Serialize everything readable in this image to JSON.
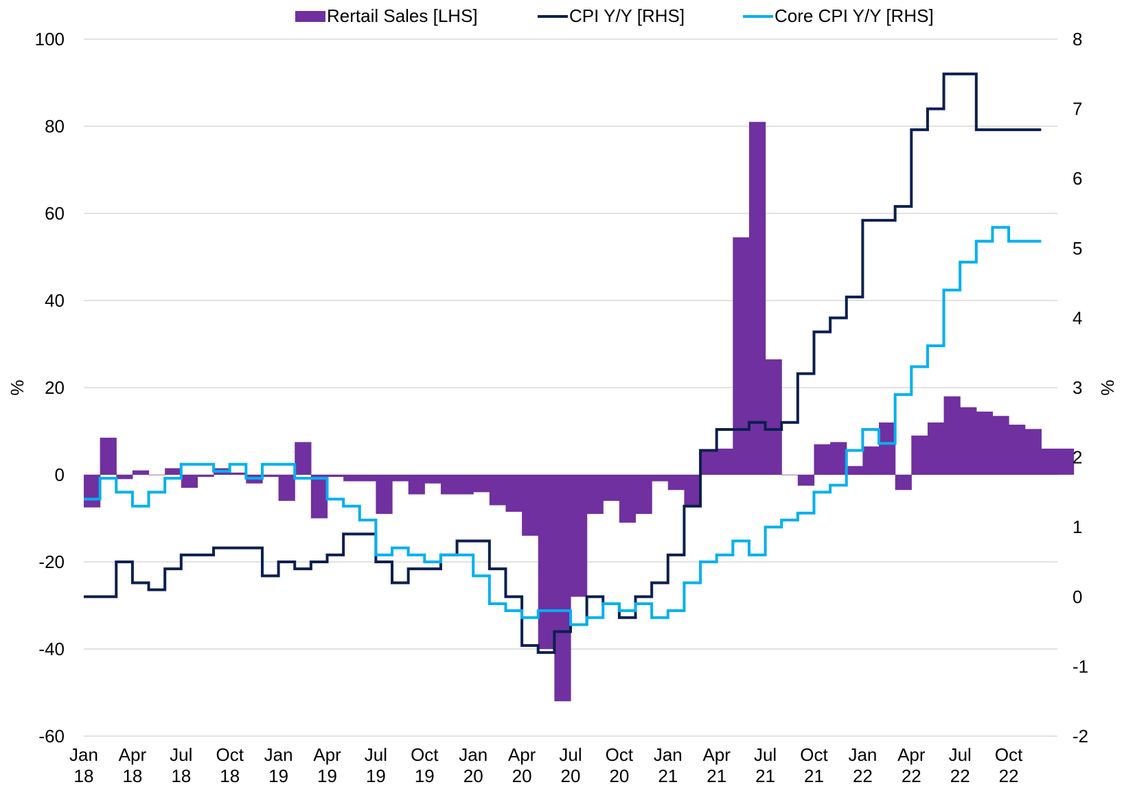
{
  "chart_data": {
    "type": "bar",
    "legend_position": "top",
    "grid": true,
    "series": [
      {
        "name": "Rertail Sales [LHS]",
        "type": "bar",
        "axis": "left",
        "color": "#7030A0",
        "values": [
          -7.5,
          8.5,
          -1,
          1,
          0,
          1.5,
          -3,
          -0.5,
          1.5,
          0.5,
          -2,
          -0.5,
          -6,
          7.5,
          -10,
          -0.5,
          -1.5,
          -1.5,
          -9,
          -1.5,
          -4.5,
          -2,
          -4.5,
          -4.5,
          -4,
          -7,
          -8.5,
          -14,
          -40,
          -52,
          -28,
          -9,
          -6,
          -11,
          -9,
          -1.5,
          -3.5,
          -7,
          5.5,
          6,
          54.5,
          81,
          26.5,
          0,
          -2.5,
          7,
          7.5,
          2,
          6.5,
          12,
          -3.5,
          9,
          12,
          18,
          15.5,
          14.5,
          13.5,
          11.5,
          10.5,
          6,
          6
        ]
      },
      {
        "name": "CPI Y/Y [RHS]",
        "type": "line",
        "axis": "right",
        "color": "#0B1F4F",
        "values": [
          0,
          0,
          0.5,
          0.2,
          0.1,
          0.4,
          0.6,
          0.6,
          0.7,
          0.7,
          0.7,
          0.3,
          0.5,
          0.4,
          0.5,
          0.6,
          0.9,
          0.9,
          0.5,
          0.2,
          0.4,
          0.4,
          0.6,
          0.8,
          0.8,
          0.4,
          0,
          -0.7,
          -0.8,
          -0.5,
          -0.4,
          0,
          -0.1,
          -0.3,
          0,
          0.2,
          0.6,
          1.3,
          2.1,
          2.4,
          2.4,
          2.5,
          2.4,
          2.5,
          3.2,
          3.8,
          4,
          4.3,
          5.4,
          5.4,
          5.6,
          6.7,
          7,
          7.5,
          7.5,
          6.7,
          6.7,
          6.7,
          6.7
        ]
      },
      {
        "name": "Core CPI Y/Y [RHS]",
        "type": "line",
        "axis": "right",
        "color": "#00B0F0",
        "values": [
          1.4,
          1.7,
          1.5,
          1.3,
          1.5,
          1.7,
          1.9,
          1.9,
          1.8,
          1.9,
          1.7,
          1.9,
          1.9,
          1.7,
          1.7,
          1.4,
          1.3,
          1.1,
          0.6,
          0.7,
          0.6,
          0.5,
          0.6,
          0.6,
          0.3,
          -0.1,
          -0.2,
          -0.3,
          -0.2,
          -0.2,
          -0.4,
          -0.3,
          -0.1,
          -0.2,
          -0.1,
          -0.3,
          -0.2,
          0.2,
          0.5,
          0.6,
          0.8,
          0.6,
          1,
          1.1,
          1.2,
          1.5,
          1.6,
          2.1,
          2.4,
          2.2,
          2.9,
          3.3,
          3.6,
          4.4,
          4.8,
          5.1,
          5.3,
          5.1,
          5.1
        ]
      }
    ],
    "x_months": 60,
    "x_tick_labels": [
      {
        "month": 0,
        "label": "Jan\n18"
      },
      {
        "month": 3,
        "label": "Apr\n18"
      },
      {
        "month": 6,
        "label": "Jul\n18"
      },
      {
        "month": 9,
        "label": "Oct\n18"
      },
      {
        "month": 12,
        "label": "Jan\n19"
      },
      {
        "month": 15,
        "label": "Apr\n19"
      },
      {
        "month": 18,
        "label": "Jul\n19"
      },
      {
        "month": 21,
        "label": "Oct\n19"
      },
      {
        "month": 24,
        "label": "Jan\n20"
      },
      {
        "month": 27,
        "label": "Apr\n20"
      },
      {
        "month": 30,
        "label": "Jul\n20"
      },
      {
        "month": 33,
        "label": "Oct\n20"
      },
      {
        "month": 36,
        "label": "Jan\n21"
      },
      {
        "month": 39,
        "label": "Apr\n21"
      },
      {
        "month": 42,
        "label": "Jul\n21"
      },
      {
        "month": 45,
        "label": "Oct\n21"
      },
      {
        "month": 48,
        "label": "Jan\n22"
      },
      {
        "month": 51,
        "label": "Apr\n22"
      },
      {
        "month": 54,
        "label": "Jul\n22"
      },
      {
        "month": 57,
        "label": "Oct\n22"
      }
    ],
    "ylim_left": [
      -60,
      100
    ],
    "yticks_left": [
      "-60",
      "-40",
      "-20",
      "0",
      "20",
      "40",
      "60",
      "80",
      "100"
    ],
    "ylim_right": [
      -2,
      8
    ],
    "yticks_right": [
      "-2",
      "-1",
      "0",
      "1",
      "2",
      "3",
      "4",
      "5",
      "6",
      "7",
      "8"
    ],
    "ylabel_left": "%",
    "ylabel_right": "%"
  }
}
